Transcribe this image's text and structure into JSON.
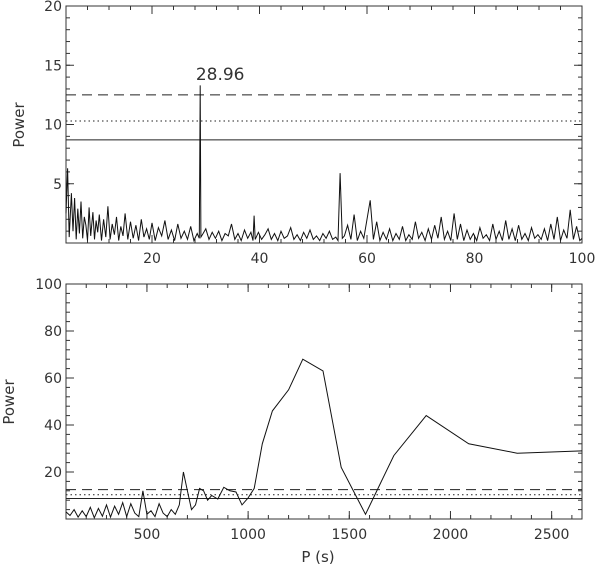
{
  "chart_data": [
    {
      "type": "line",
      "title": "",
      "xlabel": "",
      "ylabel": "Power",
      "xlim": [
        4,
        100
      ],
      "ylim": [
        0,
        20
      ],
      "x_ticks": [
        "20",
        "40",
        "60",
        "80",
        "100"
      ],
      "y_ticks": [
        "5",
        "10",
        "15",
        "20"
      ],
      "grid": false,
      "reference_lines": [
        {
          "style": "dashed",
          "y": 12.5
        },
        {
          "style": "dotted",
          "y": 10.3
        },
        {
          "style": "solid",
          "y": 8.7
        }
      ],
      "annotations": [
        {
          "text": "28.96",
          "x": 28.96,
          "y": 13.4
        }
      ],
      "series": [
        {
          "x": [
            4,
            4.3,
            4.6,
            5.0,
            5.3,
            5.6,
            5.9,
            6.2,
            6.5,
            6.8,
            7.1,
            7.4,
            7.7,
            8.0,
            8.3,
            8.6,
            9.0,
            9.3,
            9.6,
            9.9,
            10.2,
            10.6,
            11.0,
            11.4,
            11.8,
            12.2,
            12.6,
            13.0,
            13.4,
            13.8,
            14.2,
            14.6,
            15.0,
            15.5,
            16.0,
            16.5,
            17.0,
            17.5,
            18.0,
            18.5,
            19.0,
            19.5,
            20.0,
            20.6,
            21.2,
            21.8,
            22.4,
            23.0,
            23.6,
            24.2,
            24.8,
            25.4,
            26.0,
            26.6,
            27.2,
            27.8,
            28.4,
            28.8,
            28.96,
            29.1,
            29.5,
            30.0,
            30.6,
            31.2,
            31.8,
            32.4,
            33.0,
            33.6,
            34.2,
            34.8,
            35.4,
            36.0,
            36.6,
            37.2,
            37.8,
            38.4,
            38.8,
            39.0,
            39.2,
            39.8,
            40.4,
            41.0,
            41.6,
            42.2,
            42.8,
            43.4,
            44.0,
            44.6,
            45.2,
            45.8,
            46.4,
            47.0,
            47.6,
            48.2,
            48.8,
            49.4,
            50.0,
            50.6,
            51.2,
            51.8,
            52.4,
            53.0,
            53.6,
            54.2,
            54.6,
            55.0,
            55.4,
            55.8,
            56.4,
            57.0,
            57.6,
            58.2,
            58.8,
            59.4,
            60.0,
            60.6,
            61.2,
            61.8,
            62.4,
            63.0,
            63.6,
            64.2,
            64.8,
            65.4,
            66.0,
            66.6,
            67.2,
            67.8,
            68.4,
            69.0,
            69.6,
            70.2,
            70.8,
            71.4,
            72.0,
            72.6,
            73.2,
            73.8,
            74.4,
            75.0,
            75.6,
            76.2,
            76.8,
            77.4,
            78.0,
            78.6,
            79.2,
            79.8,
            80.4,
            81.0,
            81.6,
            82.2,
            82.8,
            83.4,
            84.0,
            84.6,
            85.2,
            85.8,
            86.4,
            87.0,
            87.6,
            88.2,
            88.8,
            89.4,
            90.0,
            90.6,
            91.2,
            91.8,
            92.4,
            93.0,
            93.6,
            94.2,
            94.8,
            95.4,
            96.0,
            96.6,
            97.2,
            97.8,
            98.4,
            99.0,
            99.6,
            100
          ],
          "y": [
            2.5,
            6.3,
            0.5,
            4.2,
            1.0,
            3.8,
            0.3,
            2.9,
            0.8,
            3.5,
            0.4,
            2.2,
            1.5,
            0.2,
            3.0,
            0.6,
            2.6,
            0.3,
            1.9,
            0.9,
            2.4,
            0.2,
            2.0,
            0.5,
            3.1,
            0.3,
            1.6,
            0.7,
            2.2,
            0.2,
            1.4,
            0.6,
            2.5,
            0.3,
            1.8,
            0.4,
            1.5,
            0.2,
            2.0,
            0.5,
            1.2,
            0.3,
            1.7,
            0.2,
            1.3,
            0.6,
            1.9,
            0.3,
            1.1,
            0.2,
            1.6,
            0.4,
            1.0,
            0.3,
            1.4,
            0.2,
            0.8,
            0.4,
            13.3,
            0.5,
            0.8,
            1.2,
            0.3,
            0.9,
            0.4,
            1.0,
            0.2,
            0.8,
            0.6,
            1.6,
            0.3,
            0.8,
            0.2,
            1.1,
            0.4,
            0.9,
            0.2,
            2.3,
            0.3,
            0.9,
            0.3,
            0.7,
            1.2,
            0.3,
            0.8,
            0.2,
            1.0,
            0.4,
            0.6,
            1.3,
            0.3,
            0.7,
            0.2,
            0.9,
            0.4,
            1.1,
            0.3,
            0.6,
            0.2,
            0.8,
            0.4,
            1.0,
            0.3,
            0.5,
            0.2,
            5.9,
            0.4,
            0.6,
            1.5,
            0.3,
            2.4,
            0.2,
            1.0,
            0.4,
            2.0,
            3.6,
            0.3,
            1.8,
            0.2,
            0.9,
            0.3,
            1.2,
            0.2,
            0.8,
            0.3,
            1.4,
            0.2,
            0.7,
            0.3,
            1.8,
            0.4,
            0.9,
            0.2,
            1.2,
            0.3,
            1.5,
            0.4,
            2.2,
            0.3,
            1.0,
            0.2,
            2.5,
            0.3,
            1.6,
            0.2,
            1.1,
            0.3,
            0.8,
            0.2,
            1.3,
            0.4,
            0.7,
            0.2,
            1.6,
            0.3,
            1.0,
            0.2,
            1.9,
            0.3,
            1.2,
            0.2,
            1.5,
            0.3,
            0.8,
            0.2,
            1.3,
            0.4,
            0.7,
            0.3,
            1.2,
            0.2,
            1.6,
            0.3,
            2.2,
            0.2,
            1.1,
            0.4,
            2.8,
            0.3,
            1.4,
            0.2,
            0.4
          ]
        }
      ]
    },
    {
      "type": "line",
      "title": "",
      "xlabel": "P (s)",
      "ylabel": "Power",
      "xlim": [
        100,
        2650
      ],
      "ylim": [
        0,
        100
      ],
      "x_ticks": [
        "500",
        "1000",
        "1500",
        "2000",
        "2500"
      ],
      "y_ticks": [
        "20",
        "40",
        "60",
        "80",
        "100"
      ],
      "grid": false,
      "reference_lines": [
        {
          "style": "dashed",
          "y": 12.5
        },
        {
          "style": "dotted",
          "y": 10.3
        },
        {
          "style": "solid",
          "y": 8.7
        }
      ],
      "series": [
        {
          "x": [
            100,
            120,
            140,
            160,
            180,
            200,
            220,
            240,
            260,
            280,
            300,
            320,
            340,
            360,
            380,
            400,
            420,
            440,
            460,
            480,
            500,
            520,
            540,
            560,
            580,
            600,
            620,
            640,
            660,
            680,
            700,
            720,
            740,
            760,
            780,
            800,
            820,
            850,
            880,
            910,
            940,
            970,
            1000,
            1030,
            1070,
            1120,
            1200,
            1270,
            1370,
            1460,
            1580,
            1720,
            1880,
            2090,
            2330,
            2650
          ],
          "y": [
            3.0,
            1.5,
            4.0,
            0.8,
            3.5,
            1.0,
            5.0,
            0.5,
            4.5,
            1.2,
            6.0,
            0.8,
            5.5,
            2.0,
            7.0,
            1.0,
            6.5,
            2.5,
            1.0,
            12.0,
            2.0,
            3.5,
            1.0,
            6.5,
            2.5,
            1.0,
            4.0,
            2.0,
            6.0,
            20.0,
            12.0,
            4.0,
            6.0,
            13.0,
            12.0,
            8.0,
            10.0,
            8.5,
            13.5,
            12.0,
            11.5,
            6.0,
            9.0,
            13.0,
            32.0,
            46.0,
            55.0,
            68.0,
            63.0,
            22.0,
            2.0,
            27.0,
            44.0,
            32.0,
            28.0,
            29.0
          ]
        }
      ]
    }
  ]
}
